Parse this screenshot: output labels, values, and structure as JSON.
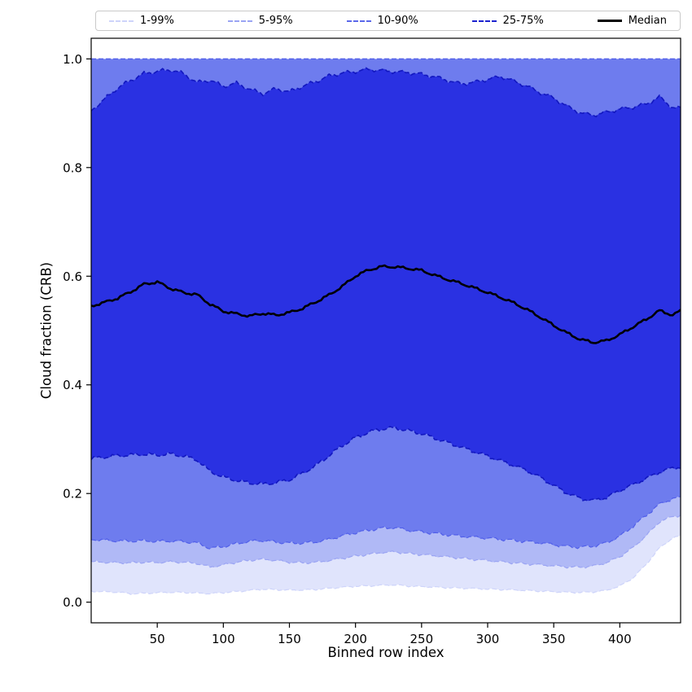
{
  "axes": {
    "xlabel": "Binned row index",
    "ylabel": "Cloud fraction (CRB)",
    "xlim": [
      0,
      446
    ],
    "ylim": [
      -0.038,
      1.038
    ],
    "xticks": [
      50,
      100,
      150,
      200,
      250,
      300,
      350,
      400
    ],
    "ytick_labels": [
      "0.0",
      "0.2",
      "0.4",
      "0.6",
      "0.8",
      "1.0"
    ],
    "ytick_values": [
      0.0,
      0.2,
      0.4,
      0.6,
      0.8,
      1.0
    ]
  },
  "legend": {
    "entries": [
      {
        "label": "1-99%",
        "color": "#ced4fa",
        "style": "dashed",
        "weight": 2
      },
      {
        "label": "5-95%",
        "color": "#9aa4f3",
        "style": "dashed",
        "weight": 2
      },
      {
        "label": "10-90%",
        "color": "#5a68ea",
        "style": "dashed",
        "weight": 2
      },
      {
        "label": "25-75%",
        "color": "#1d23cf",
        "style": "dashed",
        "weight": 2
      },
      {
        "label": "Median",
        "color": "#000000",
        "style": "solid",
        "weight": 3
      }
    ]
  },
  "chart_data": {
    "type": "area",
    "title": "",
    "xlabel": "Binned row index",
    "ylabel": "Cloud fraction (CRB)",
    "xlim": [
      0,
      446
    ],
    "ylim": [
      -0.038,
      1.038
    ],
    "grid": false,
    "legend_position": "top",
    "x": [
      0,
      10,
      20,
      30,
      40,
      50,
      60,
      70,
      80,
      90,
      100,
      110,
      120,
      130,
      140,
      150,
      160,
      170,
      180,
      190,
      200,
      210,
      220,
      230,
      240,
      250,
      260,
      270,
      280,
      290,
      300,
      310,
      320,
      330,
      340,
      350,
      360,
      370,
      380,
      390,
      400,
      410,
      420,
      430,
      440,
      446
    ],
    "bands": [
      {
        "label": "1-99%",
        "upper": 1.0,
        "lower": [
          0.02,
          0.019,
          0.018,
          0.015,
          0.016,
          0.017,
          0.018,
          0.018,
          0.017,
          0.016,
          0.018,
          0.02,
          0.022,
          0.024,
          0.023,
          0.022,
          0.022,
          0.023,
          0.025,
          0.027,
          0.029,
          0.03,
          0.031,
          0.032,
          0.03,
          0.029,
          0.028,
          0.027,
          0.026,
          0.025,
          0.024,
          0.023,
          0.022,
          0.021,
          0.02,
          0.019,
          0.018,
          0.018,
          0.019,
          0.022,
          0.03,
          0.045,
          0.07,
          0.1,
          0.118,
          0.122
        ],
        "fill": "#e0e4fc",
        "edge": "#ced4fa"
      },
      {
        "label": "5-95%",
        "upper": 1.0,
        "lower": [
          0.075,
          0.074,
          0.073,
          0.073,
          0.074,
          0.073,
          0.074,
          0.073,
          0.071,
          0.064,
          0.068,
          0.073,
          0.077,
          0.079,
          0.077,
          0.074,
          0.073,
          0.074,
          0.077,
          0.081,
          0.085,
          0.088,
          0.091,
          0.092,
          0.089,
          0.087,
          0.085,
          0.083,
          0.081,
          0.079,
          0.077,
          0.075,
          0.073,
          0.071,
          0.069,
          0.067,
          0.065,
          0.064,
          0.066,
          0.072,
          0.083,
          0.1,
          0.122,
          0.148,
          0.158,
          0.16
        ],
        "fill": "#b0b9f6",
        "edge": "#9aa4f3"
      },
      {
        "label": "10-90%",
        "upper": 1.0,
        "lower": [
          0.115,
          0.113,
          0.112,
          0.112,
          0.113,
          0.112,
          0.113,
          0.112,
          0.11,
          0.1,
          0.103,
          0.108,
          0.112,
          0.113,
          0.11,
          0.108,
          0.108,
          0.11,
          0.115,
          0.122,
          0.128,
          0.133,
          0.137,
          0.138,
          0.133,
          0.13,
          0.127,
          0.124,
          0.121,
          0.119,
          0.117,
          0.115,
          0.113,
          0.111,
          0.109,
          0.106,
          0.103,
          0.102,
          0.104,
          0.11,
          0.122,
          0.14,
          0.16,
          0.18,
          0.19,
          0.192
        ],
        "fill": "#6e7cee",
        "edge": "#515fe9"
      },
      {
        "label": "25-75%",
        "upper": [
          0.905,
          0.926,
          0.946,
          0.96,
          0.972,
          0.976,
          0.979,
          0.972,
          0.956,
          0.961,
          0.95,
          0.956,
          0.945,
          0.937,
          0.946,
          0.94,
          0.95,
          0.958,
          0.968,
          0.973,
          0.976,
          0.98,
          0.978,
          0.976,
          0.975,
          0.972,
          0.968,
          0.961,
          0.955,
          0.958,
          0.963,
          0.968,
          0.959,
          0.949,
          0.937,
          0.927,
          0.912,
          0.9,
          0.896,
          0.902,
          0.908,
          0.912,
          0.918,
          0.931,
          0.911,
          0.91
        ],
        "lower": [
          0.265,
          0.268,
          0.27,
          0.271,
          0.272,
          0.27,
          0.272,
          0.268,
          0.261,
          0.24,
          0.23,
          0.224,
          0.22,
          0.218,
          0.221,
          0.226,
          0.238,
          0.252,
          0.27,
          0.288,
          0.302,
          0.312,
          0.318,
          0.32,
          0.315,
          0.31,
          0.302,
          0.294,
          0.286,
          0.278,
          0.27,
          0.261,
          0.252,
          0.242,
          0.229,
          0.214,
          0.2,
          0.19,
          0.186,
          0.192,
          0.205,
          0.216,
          0.228,
          0.24,
          0.248,
          0.25
        ],
        "fill": "#2a31e2",
        "edge": "#1217c0"
      }
    ],
    "median": {
      "label": "Median",
      "color": "#000000",
      "width": 2.6,
      "values": [
        0.545,
        0.552,
        0.56,
        0.572,
        0.586,
        0.59,
        0.578,
        0.57,
        0.566,
        0.548,
        0.535,
        0.53,
        0.526,
        0.531,
        0.528,
        0.533,
        0.541,
        0.553,
        0.566,
        0.582,
        0.601,
        0.612,
        0.618,
        0.617,
        0.614,
        0.61,
        0.601,
        0.593,
        0.586,
        0.578,
        0.57,
        0.561,
        0.551,
        0.539,
        0.525,
        0.51,
        0.496,
        0.484,
        0.478,
        0.481,
        0.492,
        0.506,
        0.52,
        0.536,
        0.528,
        0.536
      ]
    }
  }
}
